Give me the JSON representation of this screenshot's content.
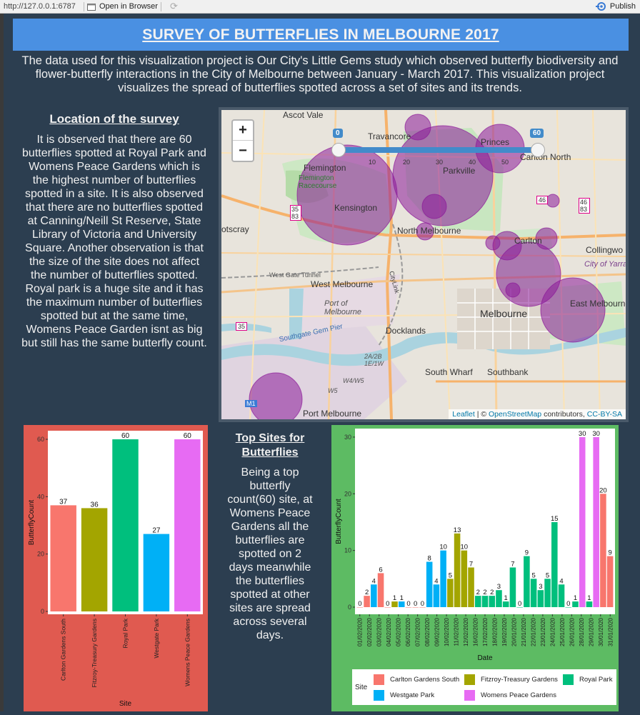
{
  "topbar": {
    "url": "http://127.0.0.1:6787",
    "open_in_browser": "Open in Browser",
    "publish": "Publish"
  },
  "header": {
    "title": "SURVEY OF BUTTERFLIES IN MELBOURNE 2017"
  },
  "intro": "The data used for this visualization project is Our City's Little Gems study which observed butterfly biodiversity and flower-butterfly interactions in the City of Melbourne between January - March 2017. This visualization project visualizes the spread of butterflies spotted across a set of sites and its trends.",
  "location": {
    "title": "Location of the survey",
    "text": "It is observed that there are 60 butterflies spotted at Royal Park and Womens Peace Gardens which is the highest number of butterflies spotted in a site. It is also observed that there are no butterflies spotted at Canning/Neill St Reserve, State Library of Victoria and University Square. Another observation is that the size of the site does not affect the number of butterflies spotted. Royal park is a huge site and it has the maximum number of butterflies spotted but at the same time, Womens Peace Garden isnt as big but still has the same butterfly count."
  },
  "map": {
    "zoom_in": "+",
    "zoom_out": "−",
    "slider_min": "0",
    "slider_max": "60",
    "slider_ticks": [
      "0",
      "10",
      "20",
      "30",
      "40",
      "50"
    ],
    "labels": {
      "ascot_vale": "Ascot Vale",
      "travancore": "Travancore",
      "princes": "Princes",
      "carlton_north": "Carlton North",
      "flemington": "Flemington",
      "flemington_racecourse": "Flemington Racecourse",
      "parkville": "Parkville",
      "kensington": "Kensington",
      "footscray": "otscray",
      "north_melbourne": "North Melbourne",
      "carlton": "Carlton",
      "collingwood": "Collingwo",
      "city_of_yarra": "City of Yarra",
      "west_melbourne": "West Melbourne",
      "west_gate_tunnel": "West Gate Tunnel",
      "port_of_melbourne": "Port of Melbourne",
      "melbourne": "Melbourne",
      "east_melbourne": "East Melbourne",
      "docklands": "Docklands",
      "southgate_gem_pier": "Southgate Gem Pier",
      "south_wharf": "South Wharf",
      "southbank": "Southbank",
      "port_melbourne": "Port Melbourne",
      "citylink": "CityLink",
      "route_35_83": "35 83",
      "route_46": "46",
      "route_46_83": "46 83",
      "route_35": "35",
      "route_m1": "M1",
      "w5": "W5",
      "w4w5": "W4/W5",
      "a2b": "2A/2B 1E/1W"
    },
    "attribution": {
      "leaflet": "Leaflet",
      "sep": " | © ",
      "osm": "OpenStreetMap",
      "contrib": " contributors, ",
      "license": "CC-BY-SA"
    }
  },
  "middle": {
    "title": "Top Sites for Butterflies",
    "text": "Being a top butterfly count(60) site, at Womens Peace Gardens all the butterflies are spotted on 2 days meanwhile the butterflies spotted at other sites are spread across several days."
  },
  "colors": {
    "carlton": "#f8766d",
    "fitzroy": "#a3a500",
    "royal": "#00bf7d",
    "westgate": "#00b0f6",
    "womens": "#e76bf3",
    "circle": "#8b1a99"
  },
  "chart_data": [
    {
      "type": "bar",
      "title": "",
      "xlabel": "Site",
      "ylabel": "ButterflyCount",
      "ylim": [
        0,
        62
      ],
      "yticks": [
        "0",
        "20",
        "40",
        "60"
      ],
      "categories": [
        "Carlton Gardens South",
        "Fitzroy-Treasury Gardens",
        "Royal Park",
        "Westgate Park",
        "Womens Peace Gardens"
      ],
      "values": [
        37,
        36,
        60,
        27,
        60
      ],
      "value_labels": [
        "37",
        "36",
        "60",
        "27",
        "60"
      ],
      "colors": [
        "#f8766d",
        "#a3a500",
        "#00bf7d",
        "#00b0f6",
        "#e76bf3"
      ]
    },
    {
      "type": "bar",
      "title": "",
      "xlabel": "Date",
      "ylabel": "ButterflyCount",
      "ylim": [
        0,
        31
      ],
      "yticks": [
        "0",
        "10",
        "20",
        "30"
      ],
      "legend_title": "Site",
      "legend": [
        "Carlton Gardens South",
        "Fitzroy-Treasury Gardens",
        "Royal Park",
        "Westgate Park",
        "Womens Peace Gardens"
      ],
      "categories": [
        "01/02/2020",
        "02/02/2020",
        "03/02/2020",
        "04/02/2020",
        "05/02/2020",
        "06/02/2020",
        "07/02/2020",
        "08/02/2020",
        "09/02/2020",
        "10/02/2020",
        "11/02/2020",
        "12/02/2020",
        "16/02/2020",
        "17/02/2020",
        "18/02/2020",
        "19/02/2020",
        "20/01/2020",
        "21/01/2020",
        "22/01/2020",
        "23/01/2020",
        "24/01/2020",
        "25/01/2020",
        "26/01/2020",
        "28/01/2020",
        "29/01/2020",
        "30/01/2020",
        "31/01/2020"
      ],
      "bars": [
        {
          "date": "01/02/2020",
          "site": "Carlton Gardens South",
          "value": 0
        },
        {
          "date": "01/02/2020",
          "site": "Carlton Gardens South",
          "value": 2
        },
        {
          "date": "02/02/2020",
          "site": "Westgate Park",
          "value": 4
        },
        {
          "date": "02/02/2020",
          "site": "Carlton Gardens South",
          "value": 6
        },
        {
          "date": "03/02/2020",
          "site": "Carlton Gardens South",
          "value": 0
        },
        {
          "date": "03/02/2020",
          "site": "Fitzroy-Treasury Gardens",
          "value": 1
        },
        {
          "date": "03/02/2020",
          "site": "Westgate Park",
          "value": 1
        },
        {
          "date": "04/02/2020",
          "site": "Carlton Gardens South",
          "value": 0
        },
        {
          "date": "04/02/2020",
          "site": "Carlton Gardens South",
          "value": 0
        },
        {
          "date": "05/02/2020",
          "site": "Carlton Gardens South",
          "value": 0
        },
        {
          "date": "06/02/2020",
          "site": "Westgate Park",
          "value": 8
        },
        {
          "date": "06/02/2020",
          "site": "Westgate Park",
          "value": 4
        },
        {
          "date": "07/02/2020",
          "site": "Westgate Park",
          "value": 10
        },
        {
          "date": "08/02/2020",
          "site": "Fitzroy-Treasury Gardens",
          "value": 5
        },
        {
          "date": "08/02/2020",
          "site": "Fitzroy-Treasury Gardens",
          "value": 13
        },
        {
          "date": "09/02/2020",
          "site": "Fitzroy-Treasury Gardens",
          "value": 10
        },
        {
          "date": "10/02/2020",
          "site": "Fitzroy-Treasury Gardens",
          "value": 7
        },
        {
          "date": "11/02/2020",
          "site": "Royal Park",
          "value": 2
        },
        {
          "date": "12/02/2020",
          "site": "Royal Park",
          "value": 2
        },
        {
          "date": "16/02/2020",
          "site": "Royal Park",
          "value": 2
        },
        {
          "date": "17/02/2020",
          "site": "Royal Park",
          "value": 3
        },
        {
          "date": "17/02/2020",
          "site": "Royal Park",
          "value": 1
        },
        {
          "date": "18/02/2020",
          "site": "Royal Park",
          "value": 7
        },
        {
          "date": "19/02/2020",
          "site": "Royal Park",
          "value": 0
        },
        {
          "date": "20/01/2020",
          "site": "Royal Park",
          "value": 9
        },
        {
          "date": "21/01/2020",
          "site": "Royal Park",
          "value": 5
        },
        {
          "date": "21/01/2020",
          "site": "Royal Park",
          "value": 3
        },
        {
          "date": "22/01/2020",
          "site": "Royal Park",
          "value": 5
        },
        {
          "date": "23/01/2020",
          "site": "Royal Park",
          "value": 15
        },
        {
          "date": "23/01/2020",
          "site": "Royal Park",
          "value": 4
        },
        {
          "date": "24/01/2020",
          "site": "Royal Park",
          "value": 0
        },
        {
          "date": "25/01/2020",
          "site": "Royal Park",
          "value": 1
        },
        {
          "date": "26/01/2020",
          "site": "Womens Peace Gardens",
          "value": 30
        },
        {
          "date": "26/01/2020",
          "site": "Royal Park",
          "value": 1
        },
        {
          "date": "28/01/2020",
          "site": "Womens Peace Gardens",
          "value": 30
        },
        {
          "date": "29/01/2020",
          "site": "Carlton Gardens South",
          "value": 20
        },
        {
          "date": "30/01/2020",
          "site": "Carlton Gardens South",
          "value": 9
        }
      ]
    }
  ]
}
